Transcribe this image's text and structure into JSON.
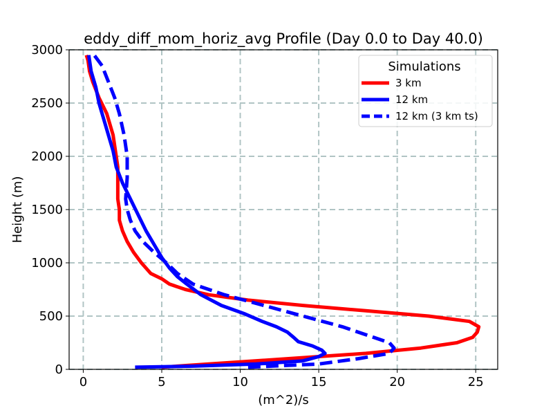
{
  "chart_data": {
    "type": "line",
    "title": "eddy_diff_mom_horiz_avg Profile (Day 0.0 to Day 40.0)",
    "xlabel": "(m^2)/s",
    "ylabel": "Height (m)",
    "xlim": [
      -0.9,
      26.4
    ],
    "ylim": [
      0,
      3000
    ],
    "xticks": [
      0,
      5,
      10,
      15,
      20,
      25
    ],
    "yticks": [
      0,
      500,
      1000,
      1500,
      2000,
      2500,
      3000
    ],
    "grid": true,
    "legend": {
      "title": "Simulations",
      "placement": "top-right"
    },
    "series": [
      {
        "name": "3 km",
        "color": "#ff0000",
        "style": "solid",
        "x": [
          5.0,
          8.0,
          13.0,
          18.0,
          21.5,
          23.8,
          24.8,
          25.1,
          25.2,
          24.6,
          22.0,
          18.0,
          14.0,
          10.5,
          8.0,
          6.5,
          5.5,
          5.0,
          4.3,
          3.7,
          3.2,
          2.8,
          2.5,
          2.3,
          2.3,
          2.2,
          2.2,
          1.9,
          1.5,
          1.0,
          0.6,
          0.4,
          0.3,
          0.2
        ],
        "y": [
          20,
          50,
          100,
          150,
          200,
          250,
          300,
          350,
          400,
          450,
          500,
          550,
          600,
          650,
          700,
          750,
          800,
          850,
          900,
          1000,
          1100,
          1200,
          1300,
          1400,
          1500,
          1600,
          1900,
          2200,
          2400,
          2550,
          2700,
          2800,
          2900,
          2950
        ]
      },
      {
        "name": "12 km",
        "color": "#0000ff",
        "style": "solid",
        "x": [
          3.3,
          7.0,
          11.0,
          14.0,
          15.0,
          15.4,
          15.2,
          14.6,
          13.7,
          13.4,
          13.0,
          12.3,
          11.4,
          10.3,
          8.8,
          7.5,
          6.6,
          6.0,
          5.5,
          5.0,
          4.6,
          4.0,
          3.5,
          3.0,
          2.5,
          2.1,
          1.9,
          1.6,
          1.3,
          1.0,
          0.8,
          0.5,
          0.35
        ],
        "y": [
          20,
          30,
          50,
          80,
          120,
          150,
          180,
          220,
          260,
          300,
          350,
          400,
          450,
          520,
          600,
          700,
          800,
          870,
          950,
          1050,
          1150,
          1300,
          1450,
          1600,
          1750,
          1900,
          2050,
          2200,
          2350,
          2500,
          2650,
          2800,
          2950
        ]
      },
      {
        "name": "12 km (3 km ts)",
        "color": "#0000ff",
        "style": "dashed",
        "x": [
          10.5,
          15.0,
          17.5,
          19.5,
          19.8,
          19.5,
          18.5,
          16.5,
          14.0,
          11.5,
          9.0,
          7.0,
          6.0,
          5.3,
          4.5,
          3.8,
          3.3,
          3.0,
          2.8,
          2.7,
          2.8,
          2.8,
          2.6,
          2.3,
          2.0,
          1.6,
          1.2,
          0.7
        ],
        "y": [
          20,
          50,
          100,
          150,
          200,
          250,
          300,
          400,
          500,
          600,
          700,
          800,
          900,
          1000,
          1100,
          1200,
          1300,
          1400,
          1500,
          1600,
          1800,
          2000,
          2200,
          2400,
          2550,
          2700,
          2850,
          2950
        ]
      }
    ]
  }
}
